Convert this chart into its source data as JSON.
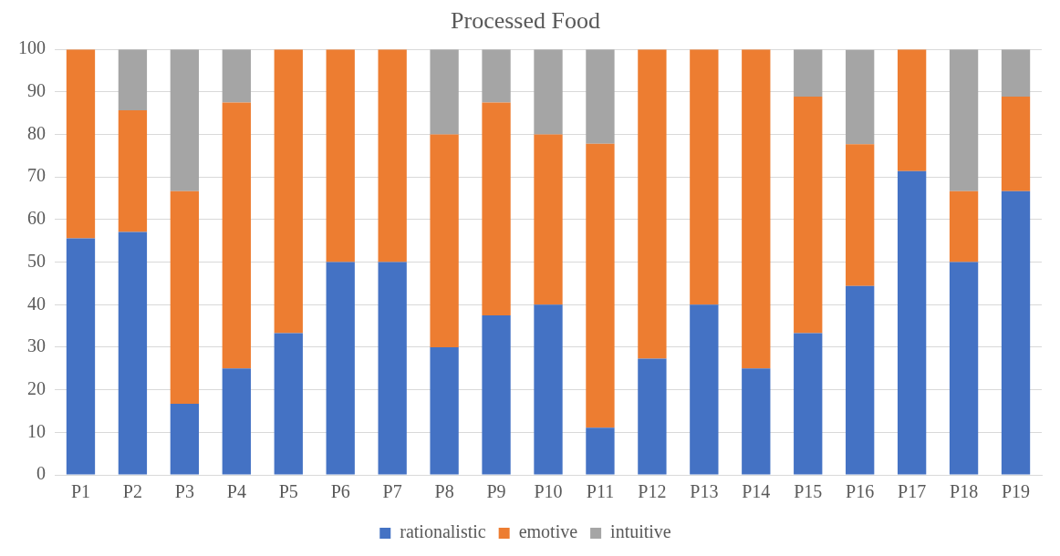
{
  "chart_data": {
    "type": "bar",
    "title": "Processed Food",
    "stacked": true,
    "categories": [
      "P1",
      "P2",
      "P3",
      "P4",
      "P5",
      "P6",
      "P7",
      "P8",
      "P9",
      "P10",
      "P11",
      "P12",
      "P13",
      "P14",
      "P15",
      "P16",
      "P17",
      "P18",
      "P19"
    ],
    "series": [
      {
        "name": "rationalistic",
        "color": "#4472c4",
        "values": [
          55.6,
          57.1,
          16.7,
          25,
          33.3,
          50,
          50,
          30,
          37.5,
          40,
          11.1,
          27.3,
          40,
          25,
          33.3,
          44.4,
          71.4,
          50,
          66.7
        ]
      },
      {
        "name": "emotive",
        "color": "#ed7d31",
        "values": [
          44.4,
          28.6,
          50,
          62.5,
          66.7,
          50,
          50,
          50,
          50,
          40,
          66.7,
          72.7,
          60,
          75,
          55.6,
          33.3,
          28.6,
          16.7,
          22.2
        ]
      },
      {
        "name": "intuitive",
        "color": "#a5a5a5",
        "values": [
          0,
          14.3,
          33.3,
          12.5,
          0,
          0,
          0,
          20,
          12.5,
          20,
          22.2,
          0,
          0,
          0,
          11.1,
          22.2,
          0,
          33.3,
          11.1
        ]
      }
    ],
    "ylim": [
      0,
      100
    ],
    "yticks": [
      0,
      10,
      20,
      30,
      40,
      50,
      60,
      70,
      80,
      90,
      100
    ],
    "grid": "y",
    "legend": "bottom"
  }
}
